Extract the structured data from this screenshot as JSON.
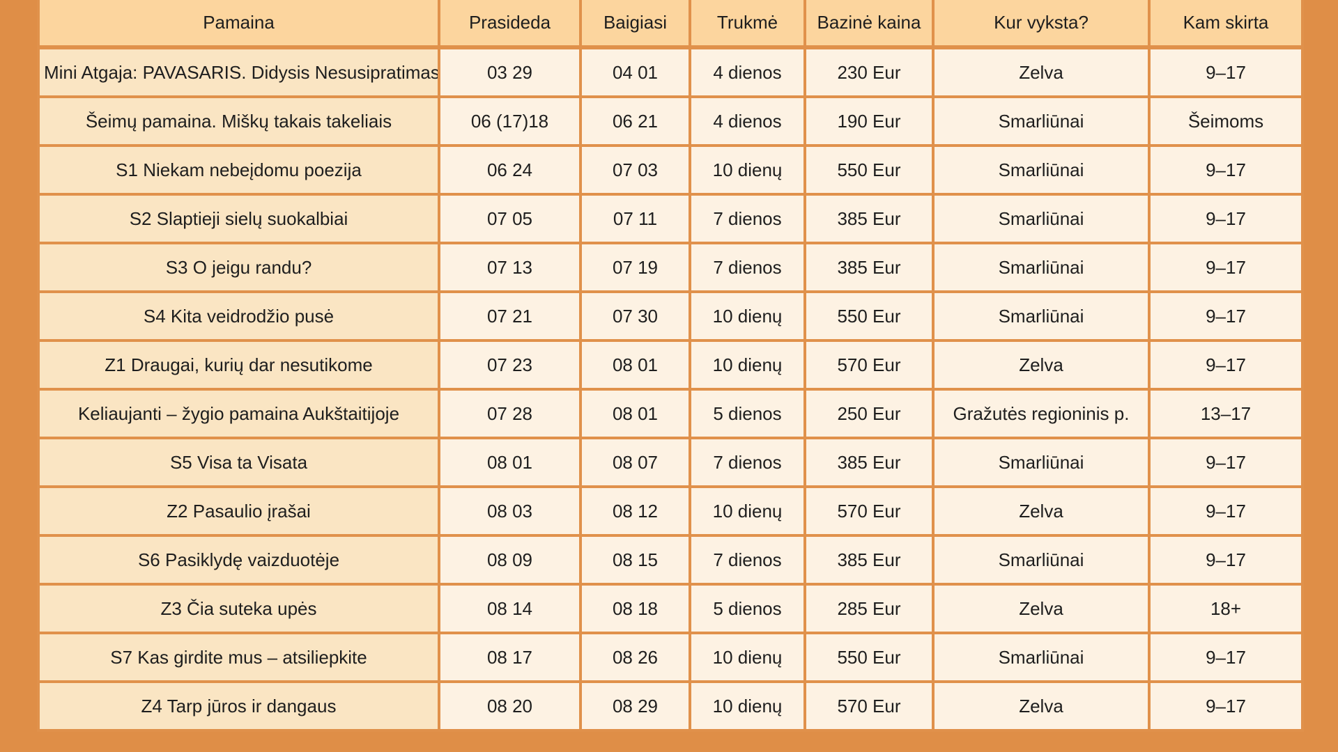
{
  "colors": {
    "page_background": "#DF8E47",
    "grid_border": "#E0914B",
    "header_background": "#FCD59E",
    "name_column_background": "#FAE5C3",
    "cell_background": "#FDF2E3",
    "text": "#1E1E1E"
  },
  "table": {
    "columns": [
      {
        "key": "pamaina",
        "label": "Pamaina"
      },
      {
        "key": "prasideda",
        "label": "Prasideda"
      },
      {
        "key": "baigiasi",
        "label": "Baigiasi"
      },
      {
        "key": "trukme",
        "label": "Trukmė"
      },
      {
        "key": "kaina",
        "label": "Bazinė kaina"
      },
      {
        "key": "vieta",
        "label": "Kur vyksta?"
      },
      {
        "key": "skirta",
        "label": "Kam skirta"
      }
    ],
    "rows": [
      [
        "Mini Atgaja: PAVASARIS. Didysis Nesusipratimas",
        "03 29",
        "04 01",
        "4 dienos",
        "230 Eur",
        "Zelva",
        "9–17"
      ],
      [
        "Šeimų pamaina. Miškų takais takeliais",
        "06 (17)18",
        "06 21",
        "4 dienos",
        "190 Eur",
        "Smarliūnai",
        "Šeimoms"
      ],
      [
        "S1 Niekam nebeįdomu poezija",
        "06 24",
        "07 03",
        "10 dienų",
        "550 Eur",
        "Smarliūnai",
        "9–17"
      ],
      [
        "S2 Slaptieji sielų suokalbiai",
        "07 05",
        "07 11",
        "7 dienos",
        "385 Eur",
        "Smarliūnai",
        "9–17"
      ],
      [
        "S3 O jeigu randu?",
        "07 13",
        "07 19",
        "7 dienos",
        "385 Eur",
        "Smarliūnai",
        "9–17"
      ],
      [
        "S4 Kita veidrodžio pusė",
        "07 21",
        "07 30",
        "10 dienų",
        "550 Eur",
        "Smarliūnai",
        "9–17"
      ],
      [
        "Z1 Draugai, kurių dar nesutikome",
        "07 23",
        "08 01",
        "10 dienų",
        "570 Eur",
        "Zelva",
        "9–17"
      ],
      [
        "Keliaujanti – žygio pamaina Aukštaitijoje",
        "07 28",
        "08 01",
        "5 dienos",
        "250 Eur",
        "Gražutės regioninis p.",
        "13–17"
      ],
      [
        "S5 Visa ta Visata",
        "08 01",
        "08 07",
        "7 dienos",
        "385 Eur",
        "Smarliūnai",
        "9–17"
      ],
      [
        "Z2 Pasaulio įrašai",
        "08 03",
        "08 12",
        "10 dienų",
        "570 Eur",
        "Zelva",
        "9–17"
      ],
      [
        "S6 Pasiklydę vaizduotėje",
        "08 09",
        "08 15",
        "7 dienos",
        "385 Eur",
        "Smarliūnai",
        "9–17"
      ],
      [
        "Z3 Čia suteka upės",
        "08 14",
        "08 18",
        "5 dienos",
        "285 Eur",
        "Zelva",
        "18+"
      ],
      [
        "S7 Kas girdite mus – atsiliepkite",
        "08 17",
        "08 26",
        "10 dienų",
        "550 Eur",
        "Smarliūnai",
        "9–17"
      ],
      [
        "Z4 Tarp jūros ir dangaus",
        "08 20",
        "08 29",
        "10 dienų",
        "570 Eur",
        "Zelva",
        "9–17"
      ]
    ]
  }
}
